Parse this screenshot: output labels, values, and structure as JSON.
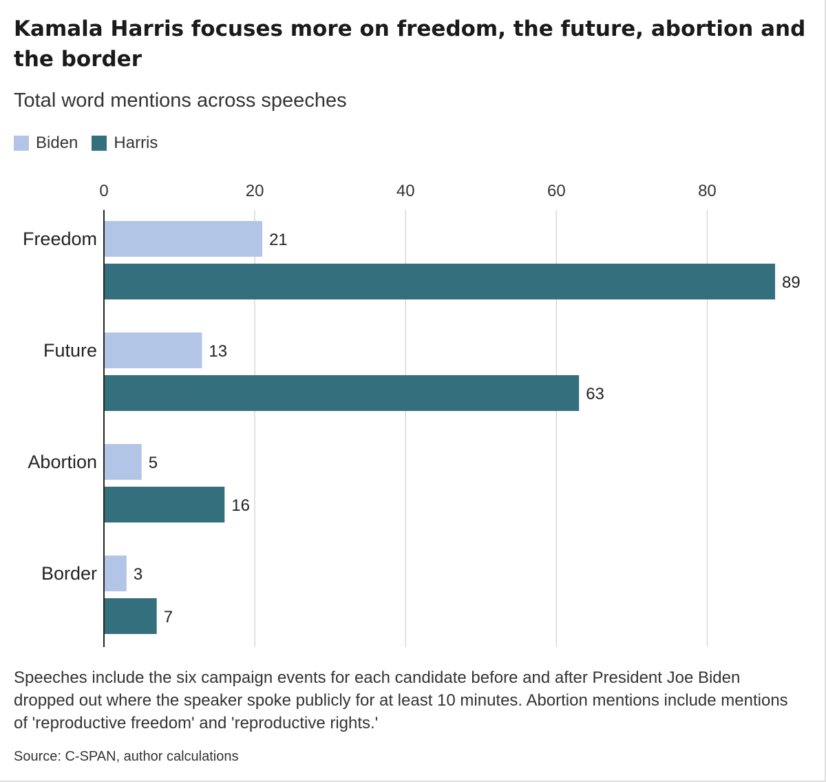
{
  "header": {
    "title": "Kamala Harris focuses more on freedom, the future, abortion and the border",
    "subtitle": "Total word mentions across speeches"
  },
  "legend": {
    "items": [
      {
        "label": "Biden",
        "color": "#b3c5e6"
      },
      {
        "label": "Harris",
        "color": "#346f7d"
      }
    ]
  },
  "footer": {
    "note": "Speeches include the six campaign events for each candidate before and after President Joe Biden dropped out where the speaker spoke publicly for at least 10 minutes. Abortion mentions include mentions of 'reproductive freedom' and 'reproductive rights.'",
    "source": "Source: C-SPAN, author calculations"
  },
  "chart_data": {
    "type": "bar",
    "orientation": "horizontal",
    "title": "Kamala Harris focuses more on freedom, the future, abortion and the border",
    "subtitle": "Total word mentions across speeches",
    "categories": [
      "Freedom",
      "Future",
      "Abortion",
      "Border"
    ],
    "series": [
      {
        "name": "Biden",
        "values": [
          21,
          13,
          5,
          3
        ],
        "color": "#b3c5e6"
      },
      {
        "name": "Harris",
        "values": [
          89,
          63,
          16,
          7
        ],
        "color": "#346f7d"
      }
    ],
    "xlim": [
      0,
      90
    ],
    "xticks": [
      0,
      20,
      40,
      60,
      80
    ],
    "xaxis_position": "top",
    "grid": true,
    "legend_position": "top-left",
    "data_labels": true
  }
}
